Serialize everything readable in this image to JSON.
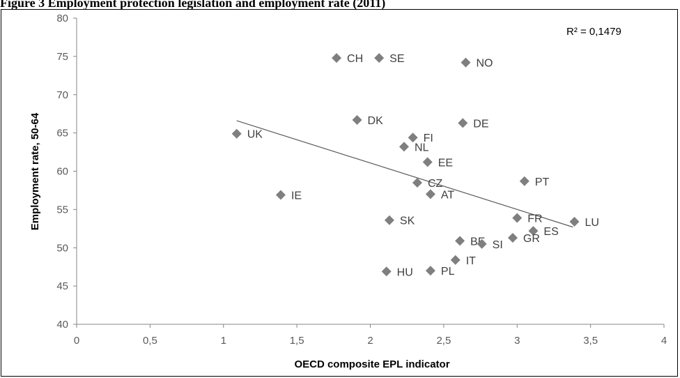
{
  "caption": "Figure 3 Employment protection legislation and employment rate (2011)",
  "chart_data": {
    "type": "scatter",
    "xlabel": "OECD composite EPL indicator",
    "ylabel": "Employment rate, 50-64",
    "xlim": [
      0,
      4
    ],
    "ylim": [
      40,
      80
    ],
    "x_ticks": [
      "0",
      "0,5",
      "1",
      "1,5",
      "2",
      "2,5",
      "3",
      "3,5",
      "4"
    ],
    "y_ticks": [
      "40",
      "45",
      "50",
      "55",
      "60",
      "65",
      "70",
      "75",
      "80"
    ],
    "grid": false,
    "marker": "diamond",
    "marker_color": "#7f7f7f",
    "trendline": {
      "type": "linear",
      "from": [
        1.09,
        66.6
      ],
      "to": [
        3.38,
        52.7
      ],
      "color": "#595959"
    },
    "annotation": "R² = 0,1479",
    "points": [
      {
        "label": "CH",
        "x": 1.77,
        "y": 74.8
      },
      {
        "label": "SE",
        "x": 2.06,
        "y": 74.8
      },
      {
        "label": "NO",
        "x": 2.65,
        "y": 74.2
      },
      {
        "label": "DK",
        "x": 1.91,
        "y": 66.7
      },
      {
        "label": "DE",
        "x": 2.63,
        "y": 66.3
      },
      {
        "label": "UK",
        "x": 1.09,
        "y": 64.9
      },
      {
        "label": "FI",
        "x": 2.29,
        "y": 64.4
      },
      {
        "label": "NL",
        "x": 2.23,
        "y": 63.2
      },
      {
        "label": "EE",
        "x": 2.39,
        "y": 61.2
      },
      {
        "label": "PT",
        "x": 3.05,
        "y": 58.7
      },
      {
        "label": "CZ",
        "x": 2.32,
        "y": 58.5
      },
      {
        "label": "AT",
        "x": 2.41,
        "y": 57.0
      },
      {
        "label": "IE",
        "x": 1.39,
        "y": 56.9
      },
      {
        "label": "FR",
        "x": 3.0,
        "y": 53.9
      },
      {
        "label": "SK",
        "x": 2.13,
        "y": 53.6
      },
      {
        "label": "LU",
        "x": 3.39,
        "y": 53.4
      },
      {
        "label": "ES",
        "x": 3.11,
        "y": 52.2
      },
      {
        "label": "GR",
        "x": 2.97,
        "y": 51.3
      },
      {
        "label": "BE",
        "x": 2.61,
        "y": 50.9
      },
      {
        "label": "SI",
        "x": 2.76,
        "y": 50.5
      },
      {
        "label": "IT",
        "x": 2.58,
        "y": 48.4
      },
      {
        "label": "PL",
        "x": 2.41,
        "y": 47.0
      },
      {
        "label": "HU",
        "x": 2.11,
        "y": 46.9
      }
    ]
  }
}
